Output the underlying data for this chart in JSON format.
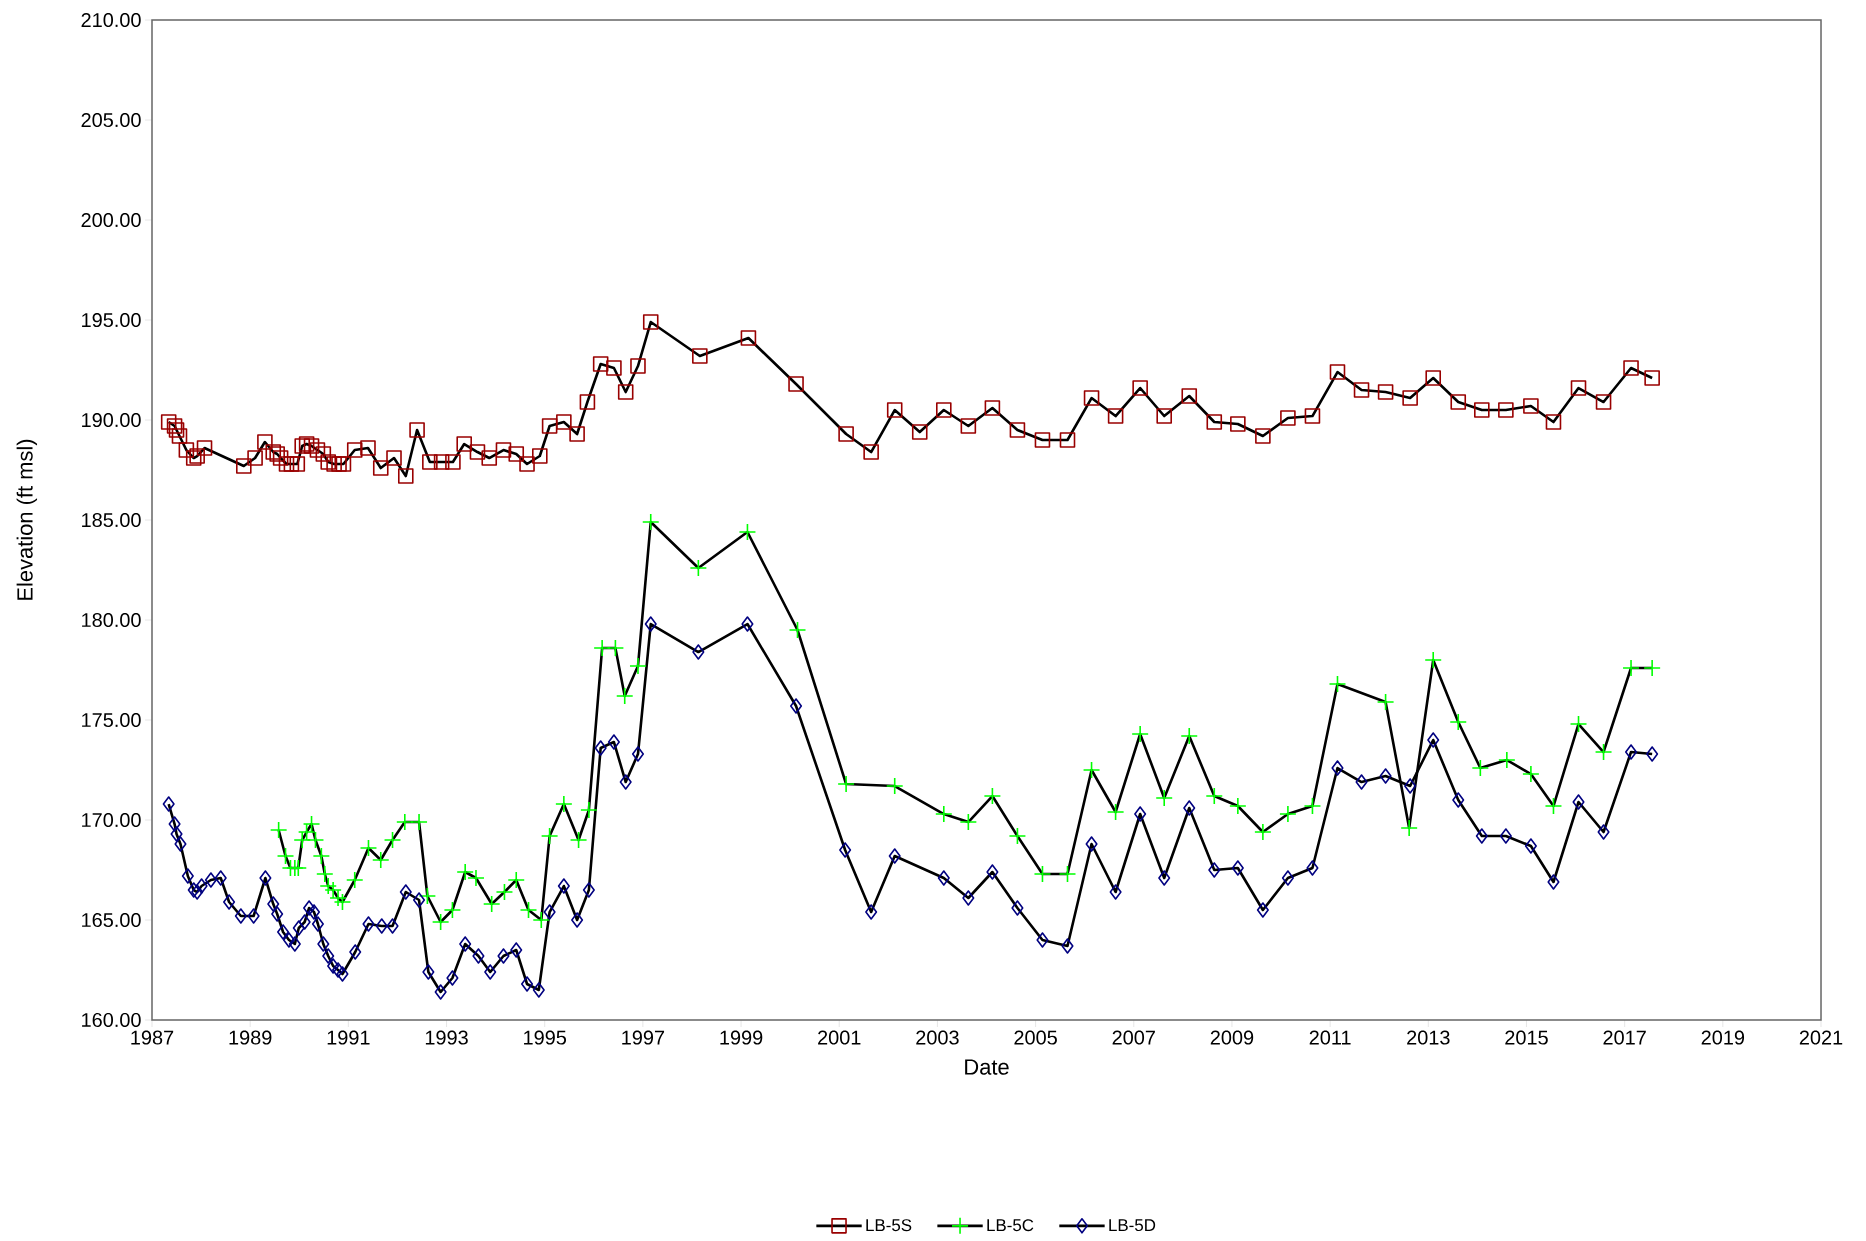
{
  "chart_data": {
    "type": "line",
    "xlabel": "Date",
    "ylabel": "Elevation (ft msl)",
    "xlim": [
      1987,
      2021
    ],
    "xticks": [
      1987,
      1989,
      1991,
      1993,
      1995,
      1997,
      1999,
      2001,
      2003,
      2005,
      2007,
      2009,
      2011,
      2013,
      2015,
      2017,
      2019,
      2021
    ],
    "ylim": [
      160,
      210
    ],
    "yticks": [
      {
        "value": 160,
        "label": "160.00"
      },
      {
        "value": 165,
        "label": "165.00"
      },
      {
        "value": 170,
        "label": "170.00"
      },
      {
        "value": 175,
        "label": "175.00"
      },
      {
        "value": 180,
        "label": "180.00"
      },
      {
        "value": 185,
        "label": "185.00"
      },
      {
        "value": 190,
        "label": "190.00"
      },
      {
        "value": 195,
        "label": "195.00"
      },
      {
        "value": 200,
        "label": "200.00"
      },
      {
        "value": 205,
        "label": "205.00"
      },
      {
        "value": 210,
        "label": "210.00"
      }
    ],
    "grid": false,
    "legend": "bottom",
    "line_style": "solid",
    "series": [
      {
        "name": "LB-5S",
        "color": "#990000",
        "marker": "square",
        "x": [
          1987.34,
          1987.46,
          1987.5,
          1987.56,
          1987.7,
          1987.85,
          1987.92,
          1988.07,
          1988.87,
          1989.1,
          1989.3,
          1989.47,
          1989.55,
          1989.62,
          1989.74,
          1989.84,
          1989.96,
          1990.06,
          1990.15,
          1990.25,
          1990.37,
          1990.49,
          1990.59,
          1990.71,
          1990.81,
          1990.9,
          1991.13,
          1991.4,
          1991.66,
          1991.93,
          1992.17,
          1992.4,
          1992.66,
          1992.9,
          1993.13,
          1993.36,
          1993.63,
          1993.87,
          1994.16,
          1994.42,
          1994.64,
          1994.9,
          1995.1,
          1995.39,
          1995.66,
          1995.87,
          1996.14,
          1996.41,
          1996.65,
          1996.9,
          1997.16,
          1998.16,
          1999.15,
          2000.12,
          2001.14,
          2001.65,
          2002.13,
          2002.64,
          2003.13,
          2003.63,
          2004.12,
          2004.63,
          2005.14,
          2005.65,
          2006.14,
          2006.63,
          2007.13,
          2007.62,
          2008.13,
          2008.64,
          2009.12,
          2009.63,
          2010.14,
          2010.64,
          2011.15,
          2011.64,
          2012.13,
          2012.63,
          2013.1,
          2013.61,
          2014.09,
          2014.58,
          2015.09,
          2015.55,
          2016.06,
          2016.57,
          2017.13,
          2017.56
        ],
        "values": [
          189.9,
          189.7,
          189.5,
          189.2,
          188.5,
          188.1,
          188.2,
          188.6,
          187.7,
          188.1,
          188.9,
          188.4,
          188.3,
          188.1,
          187.8,
          187.8,
          187.8,
          188.7,
          188.8,
          188.7,
          188.5,
          188.3,
          187.9,
          187.8,
          187.8,
          187.8,
          188.5,
          188.6,
          187.6,
          188.1,
          187.2,
          189.5,
          187.9,
          187.9,
          187.9,
          188.8,
          188.4,
          188.1,
          188.5,
          188.3,
          187.8,
          188.2,
          189.7,
          189.9,
          189.3,
          190.9,
          192.8,
          192.6,
          191.4,
          192.7,
          194.9,
          193.2,
          194.1,
          191.8,
          189.3,
          188.4,
          190.5,
          189.4,
          190.5,
          189.7,
          190.6,
          189.5,
          189.0,
          189.0,
          191.1,
          190.2,
          191.6,
          190.2,
          191.2,
          189.9,
          189.8,
          189.2,
          190.1,
          190.2,
          192.4,
          191.5,
          191.4,
          191.1,
          192.1,
          190.9,
          190.5,
          190.5,
          190.7,
          189.9,
          191.6,
          190.9,
          192.6,
          192.1
        ]
      },
      {
        "name": "LB-5C",
        "color": "#00ff00",
        "marker": "cross",
        "x": [
          1989.58,
          1989.72,
          1989.82,
          1989.91,
          1989.98,
          1990.06,
          1990.15,
          1990.25,
          1990.33,
          1990.45,
          1990.52,
          1990.59,
          1990.69,
          1990.79,
          1990.88,
          1991.13,
          1991.41,
          1991.66,
          1991.9,
          1992.15,
          1992.44,
          1992.61,
          1992.88,
          1993.12,
          1993.38,
          1993.6,
          1993.92,
          1994.18,
          1994.42,
          1994.67,
          1994.93,
          1995.1,
          1995.39,
          1995.69,
          1995.9,
          1996.17,
          1996.44,
          1996.63,
          1996.9,
          1997.16,
          1998.13,
          1999.13,
          2000.15,
          2001.14,
          2002.13,
          2003.13,
          2003.63,
          2004.12,
          2004.63,
          2005.14,
          2005.65,
          2006.14,
          2006.63,
          2007.13,
          2007.62,
          2008.13,
          2008.64,
          2009.12,
          2009.63,
          2010.14,
          2010.64,
          2011.15,
          2012.13,
          2012.61,
          2013.1,
          2013.61,
          2014.06,
          2014.6,
          2015.09,
          2015.55,
          2016.06,
          2016.57,
          2017.13,
          2017.56
        ],
        "values": [
          169.5,
          168.2,
          167.6,
          167.6,
          167.6,
          169.0,
          169.4,
          169.8,
          169.0,
          168.2,
          167.3,
          166.7,
          166.5,
          166.1,
          165.9,
          167.0,
          168.6,
          168.0,
          169.0,
          169.9,
          169.9,
          166.2,
          164.9,
          165.5,
          167.4,
          167.1,
          165.8,
          166.4,
          167.0,
          165.5,
          165.0,
          169.2,
          170.8,
          169.0,
          170.5,
          178.6,
          178.6,
          176.2,
          177.7,
          184.9,
          182.6,
          184.4,
          179.5,
          171.8,
          171.7,
          170.3,
          169.9,
          171.2,
          169.2,
          167.3,
          167.3,
          172.5,
          170.4,
          174.3,
          171.1,
          174.2,
          171.2,
          170.7,
          169.4,
          170.3,
          170.7,
          176.8,
          175.9,
          169.6,
          178.0,
          174.9,
          172.6,
          173.0,
          172.3,
          170.7,
          174.8,
          173.4,
          177.6,
          177.6
        ]
      },
      {
        "name": "LB-5D",
        "color": "#000080",
        "marker": "diamond",
        "x": [
          1987.34,
          1987.46,
          1987.5,
          1987.58,
          1987.73,
          1987.85,
          1987.92,
          1988.01,
          1988.2,
          1988.4,
          1988.57,
          1988.81,
          1989.07,
          1989.31,
          1989.47,
          1989.55,
          1989.67,
          1989.79,
          1989.91,
          1989.99,
          1990.11,
          1990.2,
          1990.3,
          1990.38,
          1990.49,
          1990.59,
          1990.69,
          1990.79,
          1990.88,
          1991.14,
          1991.41,
          1991.68,
          1991.9,
          1992.17,
          1992.44,
          1992.63,
          1992.88,
          1993.12,
          1993.38,
          1993.65,
          1993.89,
          1994.16,
          1994.42,
          1994.64,
          1994.88,
          1995.1,
          1995.39,
          1995.66,
          1995.9,
          1996.14,
          1996.41,
          1996.65,
          1996.9,
          1997.16,
          1998.13,
          1999.13,
          2000.12,
          2001.12,
          2001.65,
          2002.13,
          2003.13,
          2003.63,
          2004.12,
          2004.63,
          2005.14,
          2005.65,
          2006.14,
          2006.63,
          2007.13,
          2007.62,
          2008.13,
          2008.64,
          2009.12,
          2009.63,
          2010.14,
          2010.64,
          2011.15,
          2011.64,
          2012.13,
          2012.63,
          2013.1,
          2013.61,
          2014.09,
          2014.58,
          2015.09,
          2015.55,
          2016.06,
          2016.57,
          2017.13,
          2017.56
        ],
        "values": [
          170.8,
          169.8,
          169.3,
          168.8,
          167.2,
          166.5,
          166.4,
          166.7,
          167.0,
          167.1,
          165.9,
          165.2,
          165.2,
          167.1,
          165.8,
          165.3,
          164.4,
          164.0,
          163.8,
          164.6,
          164.9,
          165.6,
          165.4,
          164.8,
          163.8,
          163.2,
          162.7,
          162.5,
          162.3,
          163.4,
          164.8,
          164.7,
          164.7,
          166.4,
          166.0,
          162.4,
          161.4,
          162.1,
          163.8,
          163.2,
          162.4,
          163.2,
          163.5,
          161.8,
          161.5,
          165.4,
          166.7,
          165.0,
          166.5,
          173.6,
          173.9,
          171.9,
          173.3,
          179.8,
          178.4,
          179.8,
          175.7,
          168.5,
          165.4,
          168.2,
          167.1,
          166.1,
          167.4,
          165.6,
          164.0,
          163.7,
          168.8,
          166.4,
          170.3,
          167.1,
          170.6,
          167.5,
          167.6,
          165.5,
          167.1,
          167.6,
          172.6,
          171.9,
          172.2,
          171.7,
          174.0,
          171.0,
          169.2,
          169.2,
          168.7,
          166.9,
          170.9,
          169.4,
          173.4,
          173.3
        ]
      }
    ]
  }
}
